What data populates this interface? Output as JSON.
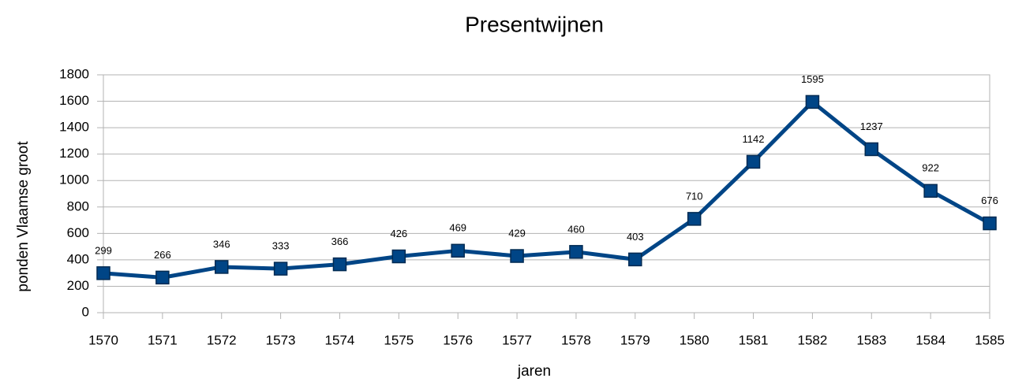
{
  "chart_data": {
    "type": "line",
    "title": "Presentwijnen",
    "x_label": "jaren",
    "y_label": "ponden Vlaamse groot",
    "x": [
      1570,
      1571,
      1572,
      1573,
      1574,
      1575,
      1576,
      1577,
      1578,
      1579,
      1580,
      1581,
      1582,
      1583,
      1584,
      1585
    ],
    "series": [
      {
        "name": "Presentwijnen",
        "color": "#004586",
        "values": [
          299,
          266,
          346,
          333,
          366,
          426,
          469,
          429,
          460,
          403,
          710,
          1142,
          1595,
          1237,
          922,
          676
        ]
      }
    ],
    "xlim": [
      1570,
      1585
    ],
    "xticks": [
      1570,
      1571,
      1572,
      1573,
      1574,
      1575,
      1576,
      1577,
      1578,
      1579,
      1580,
      1581,
      1582,
      1583,
      1584,
      1585
    ],
    "ylim": [
      0,
      1800
    ],
    "yticks": [
      0,
      200,
      400,
      600,
      800,
      1000,
      1200,
      1400,
      1600,
      1800
    ],
    "grid": true
  }
}
